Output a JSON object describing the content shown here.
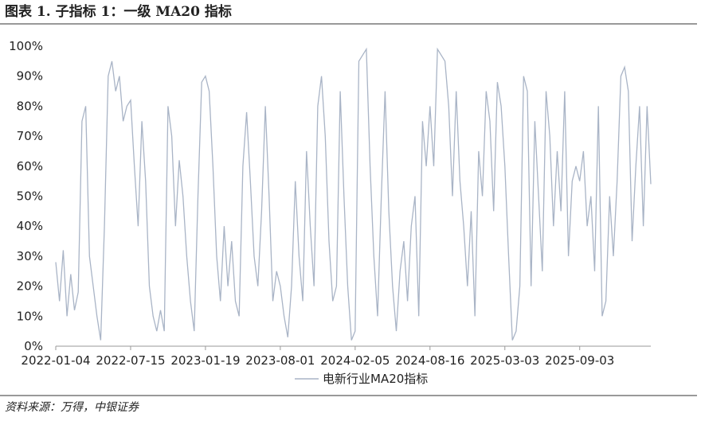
{
  "header": {
    "title": "图表 1. 子指标 1：一级 MA20 指标"
  },
  "chart_data": {
    "type": "line",
    "categories": [
      "2022-01-04",
      null,
      null,
      null,
      null,
      null,
      null,
      null,
      null,
      null,
      null,
      null,
      null,
      null,
      null,
      null,
      null,
      null,
      null,
      null,
      "2022-07-15",
      null,
      null,
      null,
      null,
      null,
      null,
      null,
      null,
      null,
      null,
      null,
      null,
      null,
      null,
      null,
      null,
      null,
      null,
      null,
      "2023-01-19",
      null,
      null,
      null,
      null,
      null,
      null,
      null,
      null,
      null,
      null,
      null,
      null,
      null,
      null,
      null,
      null,
      null,
      null,
      null,
      "2023-08-01",
      null,
      null,
      null,
      null,
      null,
      null,
      null,
      null,
      null,
      null,
      null,
      null,
      null,
      null,
      null,
      null,
      null,
      null,
      null,
      "2024-02-05",
      null,
      null,
      null,
      null,
      null,
      null,
      null,
      null,
      null,
      null,
      null,
      null,
      null,
      null,
      null,
      null,
      null,
      null,
      null,
      "2024-08-16",
      null,
      null,
      null,
      null,
      null,
      null,
      null,
      null,
      null,
      null,
      null,
      null,
      null,
      null,
      null,
      null,
      null,
      null,
      null,
      "2025-03-03",
      null,
      null,
      null,
      null,
      null,
      null,
      null,
      null,
      null,
      null,
      null,
      null,
      null,
      null,
      null,
      null,
      null,
      null,
      null,
      "2025-09-03",
      null,
      null,
      null,
      null,
      null,
      null,
      null,
      null,
      null,
      null,
      null,
      null,
      null,
      null,
      null,
      null,
      null,
      null,
      null
    ],
    "series": [
      {
        "name": "电新行业MA20指标",
        "color": "#a9b4c6",
        "values": [
          28,
          15,
          32,
          10,
          24,
          12,
          18,
          75,
          80,
          30,
          20,
          10,
          2,
          40,
          90,
          95,
          85,
          90,
          75,
          80,
          82,
          60,
          40,
          75,
          55,
          20,
          10,
          5,
          12,
          5,
          80,
          70,
          40,
          62,
          50,
          30,
          15,
          5,
          50,
          88,
          90,
          85,
          60,
          30,
          15,
          40,
          20,
          35,
          15,
          10,
          60,
          78,
          55,
          30,
          20,
          45,
          80,
          50,
          15,
          25,
          20,
          10,
          3,
          20,
          55,
          30,
          15,
          65,
          40,
          20,
          80,
          90,
          70,
          35,
          15,
          20,
          85,
          50,
          20,
          2,
          5,
          95,
          97,
          99,
          60,
          30,
          10,
          50,
          85,
          45,
          20,
          5,
          25,
          35,
          15,
          40,
          50,
          10,
          75,
          60,
          80,
          60,
          99,
          97,
          95,
          80,
          50,
          85,
          55,
          40,
          20,
          45,
          10,
          65,
          50,
          85,
          75,
          45,
          88,
          80,
          60,
          30,
          2,
          5,
          20,
          90,
          85,
          20,
          75,
          50,
          25,
          85,
          70,
          40,
          65,
          45,
          85,
          30,
          55,
          60,
          55,
          65,
          40,
          50,
          25,
          80,
          10,
          15,
          50,
          30,
          55,
          90,
          93,
          85,
          35,
          60,
          80,
          40,
          80,
          54
        ]
      }
    ],
    "ylim": [
      0,
      100
    ],
    "yticks": [
      {
        "value": 0,
        "label": "0%"
      },
      {
        "value": 10,
        "label": "10%"
      },
      {
        "value": 20,
        "label": "20%"
      },
      {
        "value": 30,
        "label": "30%"
      },
      {
        "value": 40,
        "label": "40%"
      },
      {
        "value": 50,
        "label": "50%"
      },
      {
        "value": 60,
        "label": "60%"
      },
      {
        "value": 70,
        "label": "70%"
      },
      {
        "value": 80,
        "label": "80%"
      },
      {
        "value": 90,
        "label": "90%"
      },
      {
        "value": 100,
        "label": "100%"
      }
    ],
    "legend": "bottom"
  },
  "footer": {
    "source": "资料来源：万得，中银证券"
  }
}
